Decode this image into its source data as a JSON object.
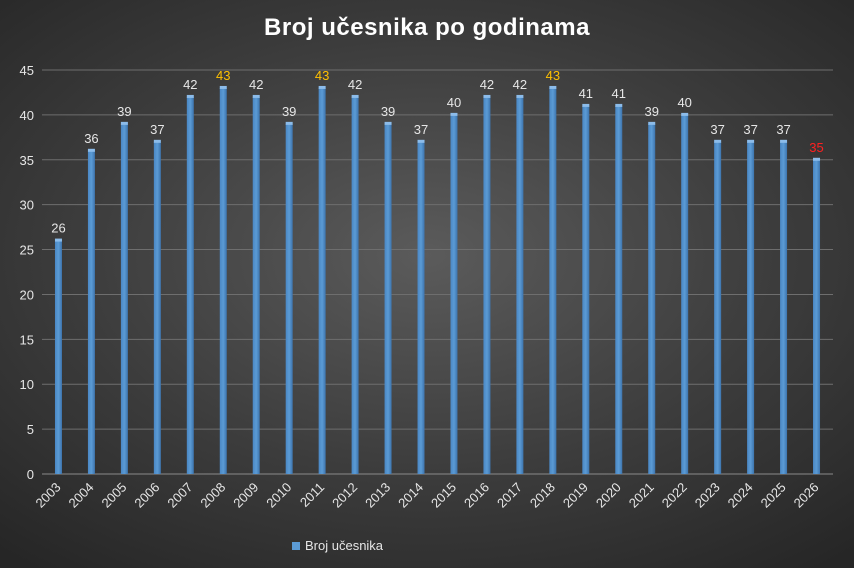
{
  "chart_data": {
    "type": "bar",
    "title": "Broj učesnika  po godinama",
    "xlabel": "",
    "ylabel": "",
    "categories": [
      "2003",
      "2004",
      "2005",
      "2006",
      "2007",
      "2008",
      "2009",
      "2010",
      "2011",
      "2012",
      "2013",
      "2014",
      "2015",
      "2016",
      "2017",
      "2018",
      "2019",
      "2020",
      "2021",
      "2022",
      "2023",
      "2024",
      "2025",
      "2026"
    ],
    "series": [
      {
        "name": "Broj učesnika",
        "values": [
          26,
          36,
          39,
          37,
          42,
          43,
          42,
          39,
          43,
          42,
          39,
          37,
          40,
          42,
          42,
          43,
          41,
          41,
          39,
          40,
          37,
          37,
          37,
          35
        ],
        "color": "#5b9bd5"
      }
    ],
    "label_colors": {
      "default": "#e6e6e6",
      "max": "#ffc000",
      "last": "#ff2020"
    },
    "ylim": [
      0,
      45
    ],
    "yticks": [
      0,
      5,
      10,
      15,
      20,
      25,
      30,
      35,
      40,
      45
    ],
    "grid": true,
    "legend_position": "bottom"
  }
}
